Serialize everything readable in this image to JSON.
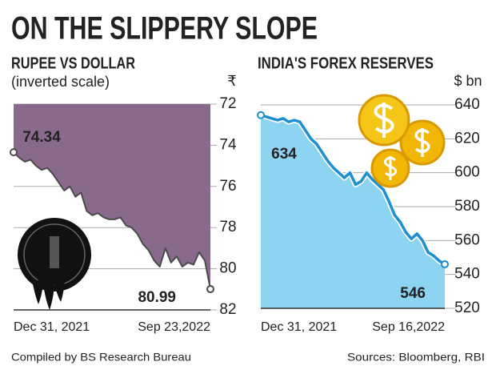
{
  "title": "ON THE SLIPPERY SLOPE",
  "credit": "Compiled by BS Research Bureau",
  "source": "Sources: Bloomberg, RBI",
  "chart_data": [
    {
      "type": "area",
      "title": "RUPEE VS DOLLAR",
      "subtitle": "(inverted scale)",
      "y_unit": "₹",
      "inverted": true,
      "fill": "above",
      "color": "#4a4a4a",
      "fill_color": "#8a6a8c",
      "categories": [
        "Dec 31, 2021",
        null,
        null,
        null,
        null,
        null,
        null,
        null,
        null,
        null,
        null,
        null,
        null,
        null,
        null,
        null,
        null,
        null,
        null,
        null,
        null,
        null,
        null,
        null,
        null,
        null,
        null,
        null,
        null,
        null,
        null,
        null,
        null,
        null,
        null,
        "Sep 23,2022"
      ],
      "values": [
        74.34,
        74.6,
        74.8,
        74.7,
        75.0,
        75.2,
        75.1,
        75.4,
        75.8,
        76.2,
        76.0,
        76.5,
        76.3,
        77.2,
        77.4,
        77.3,
        77.5,
        77.6,
        77.6,
        77.5,
        77.9,
        78.0,
        78.3,
        78.8,
        79.1,
        79.6,
        79.9,
        79.0,
        79.7,
        79.4,
        79.9,
        79.7,
        79.8,
        79.2,
        79.6,
        80.99
      ],
      "ylim": [
        72,
        82
      ],
      "yticks": [
        72,
        74,
        76,
        78,
        80,
        82
      ]
    },
    {
      "type": "area",
      "title": "INDIA'S FOREX RESERVES",
      "y_unit": "$ bn",
      "inverted": false,
      "fill": "below",
      "color": "#1b8fd1",
      "fill_color": "#8dd3f2",
      "categories": [
        "Dec 31, 2021",
        null,
        null,
        null,
        null,
        null,
        null,
        null,
        null,
        null,
        null,
        null,
        null,
        null,
        null,
        null,
        null,
        null,
        null,
        null,
        null,
        null,
        null,
        null,
        null,
        null,
        null,
        null,
        null,
        null,
        null,
        null,
        null,
        "Sep 16,2022"
      ],
      "values": [
        634,
        633,
        632,
        631,
        632,
        630,
        631,
        630,
        625,
        620,
        617,
        612,
        607,
        603,
        600,
        597,
        600,
        593,
        595,
        600,
        596,
        593,
        590,
        583,
        575,
        571,
        565,
        561,
        564,
        560,
        553,
        551,
        548,
        546
      ],
      "ylim": [
        520,
        640
      ],
      "yticks": [
        520,
        540,
        560,
        580,
        600,
        620,
        640
      ]
    }
  ]
}
